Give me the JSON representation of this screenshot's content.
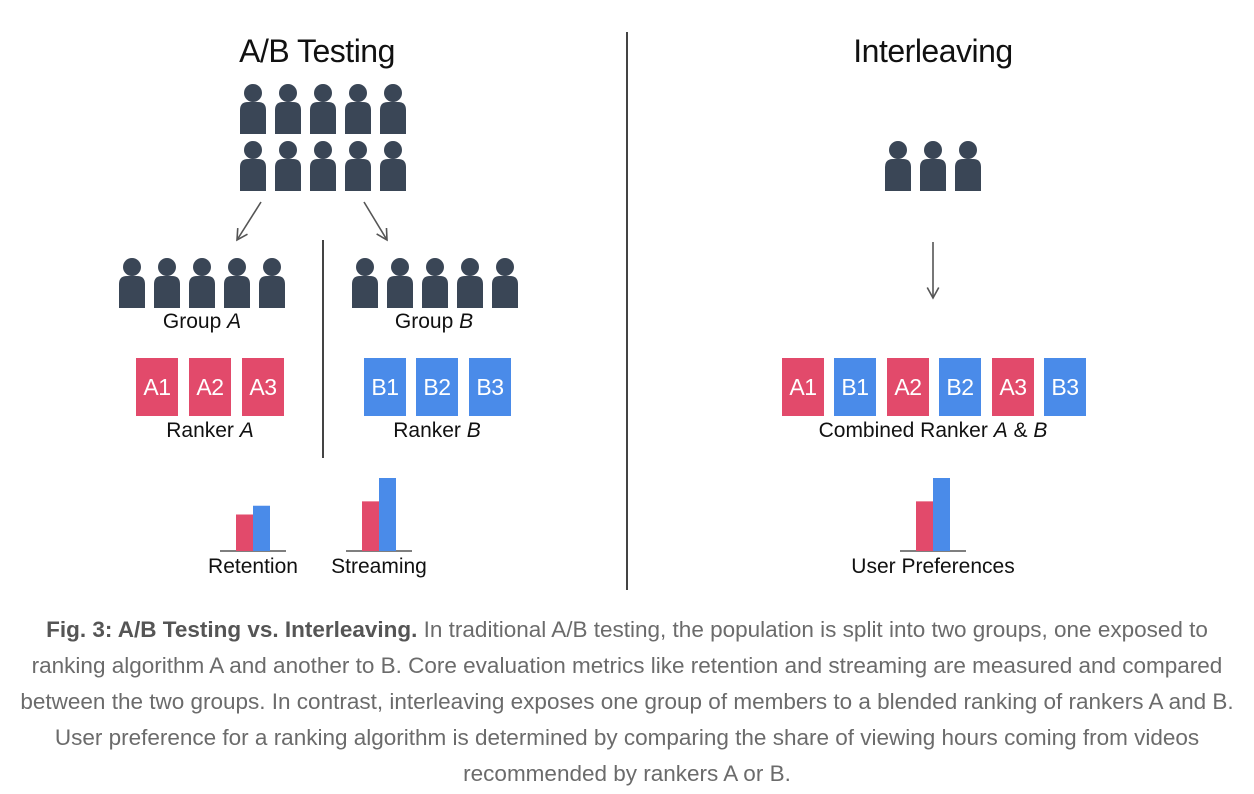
{
  "ab": {
    "title": "A/B Testing",
    "group_a": {
      "label": "Group ",
      "letter": "A"
    },
    "group_b": {
      "label": "Group ",
      "letter": "B"
    },
    "ranker_a": {
      "label": "Ranker ",
      "letter": "A",
      "items": [
        "A1",
        "A2",
        "A3"
      ]
    },
    "ranker_b": {
      "label": "Ranker ",
      "letter": "B",
      "items": [
        "B1",
        "B2",
        "B3"
      ]
    },
    "metrics": [
      {
        "label": "Retention",
        "a": 0.5,
        "b": 0.62
      },
      {
        "label": "Streaming",
        "a": 0.68,
        "b": 1.0
      }
    ]
  },
  "interleaving": {
    "title": "Interleaving",
    "items": [
      "A1",
      "B1",
      "A2",
      "B2",
      "A3",
      "B3"
    ],
    "combined": {
      "prefix": "Combined Ranker ",
      "letter_a": "A",
      "amp": " & ",
      "letter_b": "B"
    },
    "metric": {
      "label": "User Preferences",
      "a": 0.68,
      "b": 1.0
    }
  },
  "colors": {
    "ranker_a": "#e24a6b",
    "ranker_b": "#4a8be9",
    "person": "#3a4656"
  },
  "caption": {
    "bold": "Fig. 3: A/B Testing vs. Interleaving.",
    "text": " In traditional A/B testing, the population is split into two groups, one exposed to ranking algorithm A and another to B. Core evaluation metrics like retention and streaming are measured and compared between the two groups. In contrast, interleaving exposes one group of members to a blended ranking of rankers A and B. User preference for a ranking algorithm is determined by comparing the share of viewing hours coming from videos recommended by rankers A or B."
  }
}
